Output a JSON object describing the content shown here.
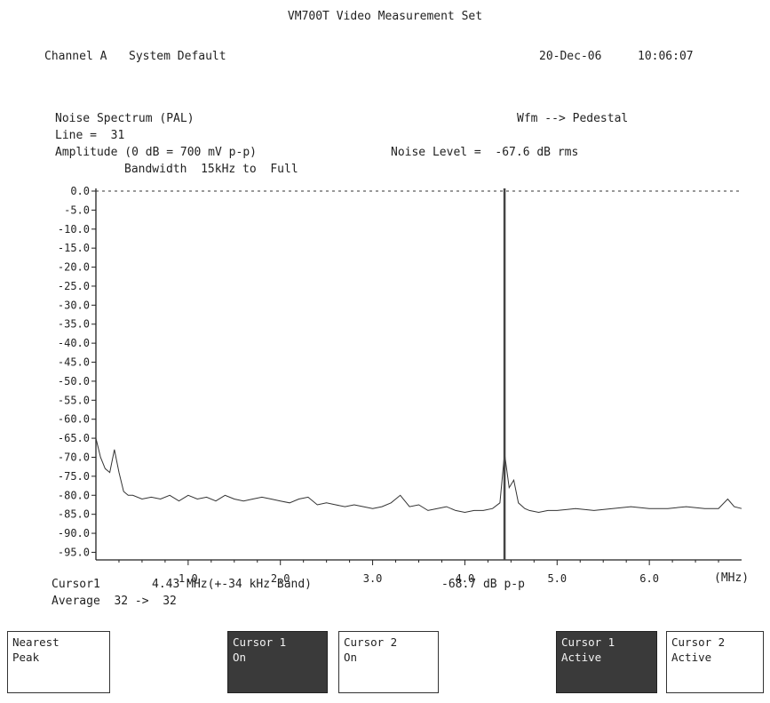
{
  "header": {
    "title": "VM700T Video Measurement Set",
    "channel": "Channel A",
    "preset": "System Default",
    "date": "20-Dec-06",
    "time": "10:06:07"
  },
  "measurement": {
    "name": "Noise Spectrum (PAL)",
    "mode": "Wfm --> Pedestal",
    "line": "Line =  31",
    "amplitude_ref": "Amplitude (0 dB = 700 mV p-p)",
    "noise_level": "Noise Level =  -67.6 dB rms",
    "bandwidth": "Bandwidth  15kHz to  Full"
  },
  "readout": {
    "cursor_label": "Cursor1",
    "cursor_value": "4.43 MHz(+-34 kHz Band)",
    "cursor_level": "-68.7 dB p-p",
    "average": "Average  32 ->  32",
    "x_unit": "(MHz)"
  },
  "softkeys": [
    {
      "line1": "Nearest",
      "line2": "Peak",
      "active": false
    },
    {
      "line1": "Cursor 1",
      "line2": "On",
      "active": true
    },
    {
      "line1": "Cursor 2",
      "line2": "On",
      "active": false
    },
    {
      "line1": "Cursor 1",
      "line2": "Active",
      "active": true
    },
    {
      "line1": "Cursor 2",
      "line2": "Active",
      "active": false
    }
  ],
  "chart_data": {
    "type": "line",
    "xlabel": "(MHz)",
    "ylabel": "",
    "xlim": [
      0,
      7.0
    ],
    "ylim": [
      -97.0,
      0.0
    ],
    "y_ticks": [
      "0.0",
      "-5.0",
      "-10.0",
      "-15.0",
      "-20.0",
      "-25.0",
      "-30.0",
      "-35.0",
      "-40.0",
      "-45.0",
      "-50.0",
      "-55.0",
      "-60.0",
      "-65.0",
      "-70.0",
      "-75.0",
      "-80.0",
      "-85.0",
      "-90.0",
      "-95.0"
    ],
    "x_ticks": [
      "1.0",
      "2.0",
      "3.0",
      "4.0",
      "5.0",
      "6.0"
    ],
    "reference_line_db": 0.0,
    "cursor_mhz": 4.43,
    "series": [
      {
        "x": [
          0.0,
          0.05,
          0.1,
          0.15,
          0.2,
          0.25,
          0.3,
          0.35,
          0.4,
          0.5,
          0.6,
          0.7,
          0.8,
          0.9,
          1.0,
          1.1,
          1.2,
          1.3,
          1.4,
          1.5,
          1.6,
          1.7,
          1.8,
          1.9,
          2.0,
          2.1,
          2.2,
          2.3,
          2.4,
          2.5,
          2.6,
          2.7,
          2.8,
          2.9,
          3.0,
          3.1,
          3.2,
          3.3,
          3.4,
          3.5,
          3.6,
          3.7,
          3.8,
          3.9,
          4.0,
          4.1,
          4.2,
          4.3,
          4.38,
          4.43,
          4.48,
          4.53,
          4.58,
          4.65,
          4.7,
          4.8,
          4.9,
          5.0,
          5.2,
          5.4,
          5.6,
          5.8,
          6.0,
          6.2,
          6.4,
          6.6,
          6.75,
          6.85,
          6.92,
          7.0
        ],
        "values": [
          -65,
          -70,
          -73,
          -74,
          -68,
          -74,
          -79,
          -80,
          -80,
          -81,
          -80.5,
          -81,
          -80,
          -81.5,
          -80,
          -81,
          -80.5,
          -81.5,
          -80,
          -81,
          -81.5,
          -81,
          -80.5,
          -81,
          -81.5,
          -82,
          -81,
          -80.5,
          -82.5,
          -82,
          -82.5,
          -83,
          -82.5,
          -83,
          -83.5,
          -83,
          -82,
          -80,
          -83,
          -82.5,
          -84,
          -83.5,
          -83,
          -84,
          -84.5,
          -84,
          -84,
          -83.5,
          -82,
          -69,
          -78,
          -76,
          -82,
          -83.5,
          -84,
          -84.5,
          -84,
          -84,
          -83.5,
          -84,
          -83.5,
          -83,
          -83.5,
          -83.5,
          -83,
          -83.5,
          -83.5,
          -81,
          -83,
          -83.5
        ]
      }
    ]
  }
}
